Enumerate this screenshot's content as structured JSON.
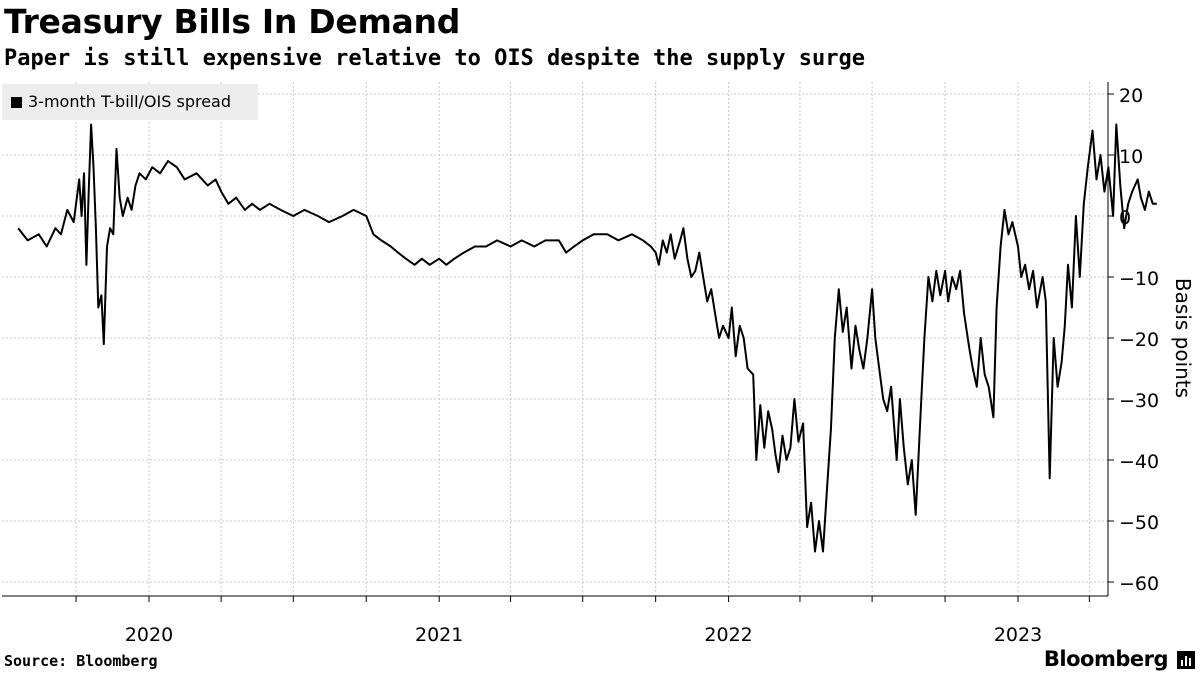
{
  "chart_data": {
    "type": "line",
    "title": "Treasury Bills In Demand",
    "subtitle": "Paper is still expensive relative to OIS despite the supply surge",
    "ylabel": "Basis points",
    "xlabel": "",
    "ylim": [
      -60,
      20
    ],
    "yticks": [
      20,
      10,
      0,
      -10,
      -20,
      -30,
      -40,
      -50,
      -60
    ],
    "xlim": [
      "2019-07-20",
      "2023-06-25"
    ],
    "xtick_labels": [
      "2020",
      "2021",
      "2022",
      "2023"
    ],
    "grid": true,
    "legend": "top-left",
    "series": [
      {
        "name": "3-month T-bill/OIS spread",
        "color": "#000000",
        "points": [
          [
            "2019-07-20",
            -2
          ],
          [
            "2019-08-01",
            -4
          ],
          [
            "2019-08-15",
            -3
          ],
          [
            "2019-08-25",
            -5
          ],
          [
            "2019-09-05",
            -2
          ],
          [
            "2019-09-12",
            -3
          ],
          [
            "2019-09-20",
            1
          ],
          [
            "2019-09-28",
            -1
          ],
          [
            "2019-10-05",
            6
          ],
          [
            "2019-10-08",
            0
          ],
          [
            "2019-10-11",
            7
          ],
          [
            "2019-10-14",
            -8
          ],
          [
            "2019-10-17",
            4
          ],
          [
            "2019-10-20",
            15
          ],
          [
            "2019-10-23",
            8
          ],
          [
            "2019-10-26",
            -2
          ],
          [
            "2019-10-29",
            -15
          ],
          [
            "2019-11-02",
            -13
          ],
          [
            "2019-11-05",
            -21
          ],
          [
            "2019-11-09",
            -5
          ],
          [
            "2019-11-13",
            -2
          ],
          [
            "2019-11-17",
            -3
          ],
          [
            "2019-11-21",
            11
          ],
          [
            "2019-11-25",
            3
          ],
          [
            "2019-11-29",
            0
          ],
          [
            "2019-12-05",
            3
          ],
          [
            "2019-12-10",
            1
          ],
          [
            "2019-12-15",
            5
          ],
          [
            "2019-12-20",
            7
          ],
          [
            "2019-12-28",
            6
          ],
          [
            "2020-01-05",
            8
          ],
          [
            "2020-01-15",
            7
          ],
          [
            "2020-01-25",
            9
          ],
          [
            "2020-02-05",
            8
          ],
          [
            "2020-02-15",
            6
          ],
          [
            "2020-03-01",
            7
          ],
          [
            "2020-03-15",
            5
          ],
          [
            "2020-03-25",
            6
          ],
          [
            "2020-04-01",
            4
          ],
          [
            "2020-04-10",
            2
          ],
          [
            "2020-04-20",
            3
          ],
          [
            "2020-05-01",
            1
          ],
          [
            "2020-05-10",
            2
          ],
          [
            "2020-05-20",
            1
          ],
          [
            "2020-06-01",
            2
          ],
          [
            "2020-06-15",
            1
          ],
          [
            "2020-07-01",
            0
          ],
          [
            "2020-07-15",
            1
          ],
          [
            "2020-08-01",
            0
          ],
          [
            "2020-08-15",
            -1
          ],
          [
            "2020-09-01",
            0
          ],
          [
            "2020-09-15",
            1
          ],
          [
            "2020-10-01",
            0
          ],
          [
            "2020-10-10",
            -3
          ],
          [
            "2020-10-20",
            -4
          ],
          [
            "2020-11-01",
            -5
          ],
          [
            "2020-11-10",
            -6
          ],
          [
            "2020-11-20",
            -7
          ],
          [
            "2020-12-01",
            -8
          ],
          [
            "2020-12-10",
            -7
          ],
          [
            "2020-12-20",
            -8
          ],
          [
            "2021-01-01",
            -7
          ],
          [
            "2021-01-10",
            -8
          ],
          [
            "2021-01-20",
            -7
          ],
          [
            "2021-02-01",
            -6
          ],
          [
            "2021-02-15",
            -5
          ],
          [
            "2021-03-01",
            -5
          ],
          [
            "2021-03-15",
            -4
          ],
          [
            "2021-04-01",
            -5
          ],
          [
            "2021-04-15",
            -4
          ],
          [
            "2021-05-01",
            -5
          ],
          [
            "2021-05-15",
            -4
          ],
          [
            "2021-06-01",
            -4
          ],
          [
            "2021-06-10",
            -6
          ],
          [
            "2021-06-20",
            -5
          ],
          [
            "2021-07-01",
            -4
          ],
          [
            "2021-07-15",
            -3
          ],
          [
            "2021-08-01",
            -3
          ],
          [
            "2021-08-15",
            -4
          ],
          [
            "2021-09-01",
            -3
          ],
          [
            "2021-09-15",
            -4
          ],
          [
            "2021-09-25",
            -5
          ],
          [
            "2021-10-01",
            -6
          ],
          [
            "2021-10-05",
            -8
          ],
          [
            "2021-10-10",
            -4
          ],
          [
            "2021-10-15",
            -6
          ],
          [
            "2021-10-20",
            -3
          ],
          [
            "2021-10-25",
            -7
          ],
          [
            "2021-11-01",
            -4
          ],
          [
            "2021-11-05",
            -2
          ],
          [
            "2021-11-10",
            -7
          ],
          [
            "2021-11-15",
            -10
          ],
          [
            "2021-11-20",
            -9
          ],
          [
            "2021-11-25",
            -6
          ],
          [
            "2021-11-30",
            -10
          ],
          [
            "2021-12-05",
            -14
          ],
          [
            "2021-12-10",
            -12
          ],
          [
            "2021-12-15",
            -16
          ],
          [
            "2021-12-20",
            -20
          ],
          [
            "2021-12-25",
            -18
          ],
          [
            "2022-01-01",
            -20
          ],
          [
            "2022-01-05",
            -15
          ],
          [
            "2022-01-10",
            -23
          ],
          [
            "2022-01-15",
            -18
          ],
          [
            "2022-01-20",
            -20
          ],
          [
            "2022-01-25",
            -25
          ],
          [
            "2022-02-01",
            -26
          ],
          [
            "2022-02-05",
            -40
          ],
          [
            "2022-02-10",
            -31
          ],
          [
            "2022-02-15",
            -38
          ],
          [
            "2022-02-20",
            -32
          ],
          [
            "2022-02-25",
            -35
          ],
          [
            "2022-03-01",
            -39
          ],
          [
            "2022-03-05",
            -42
          ],
          [
            "2022-03-10",
            -36
          ],
          [
            "2022-03-15",
            -40
          ],
          [
            "2022-03-20",
            -38
          ],
          [
            "2022-03-25",
            -30
          ],
          [
            "2022-03-30",
            -37
          ],
          [
            "2022-04-05",
            -34
          ],
          [
            "2022-04-10",
            -51
          ],
          [
            "2022-04-15",
            -47
          ],
          [
            "2022-04-20",
            -55
          ],
          [
            "2022-04-25",
            -50
          ],
          [
            "2022-04-30",
            -55
          ],
          [
            "2022-05-05",
            -45
          ],
          [
            "2022-05-10",
            -35
          ],
          [
            "2022-05-15",
            -20
          ],
          [
            "2022-05-20",
            -12
          ],
          [
            "2022-05-25",
            -19
          ],
          [
            "2022-05-30",
            -15
          ],
          [
            "2022-06-05",
            -25
          ],
          [
            "2022-06-10",
            -18
          ],
          [
            "2022-06-15",
            -22
          ],
          [
            "2022-06-20",
            -25
          ],
          [
            "2022-06-25",
            -20
          ],
          [
            "2022-07-01",
            -12
          ],
          [
            "2022-07-05",
            -20
          ],
          [
            "2022-07-10",
            -25
          ],
          [
            "2022-07-15",
            -30
          ],
          [
            "2022-07-20",
            -32
          ],
          [
            "2022-07-25",
            -28
          ],
          [
            "2022-08-01",
            -40
          ],
          [
            "2022-08-05",
            -30
          ],
          [
            "2022-08-10",
            -38
          ],
          [
            "2022-08-15",
            -44
          ],
          [
            "2022-08-20",
            -40
          ],
          [
            "2022-08-25",
            -49
          ],
          [
            "2022-09-01",
            -30
          ],
          [
            "2022-09-05",
            -20
          ],
          [
            "2022-09-10",
            -10
          ],
          [
            "2022-09-15",
            -14
          ],
          [
            "2022-09-20",
            -9
          ],
          [
            "2022-09-25",
            -13
          ],
          [
            "2022-10-01",
            -9
          ],
          [
            "2022-10-05",
            -14
          ],
          [
            "2022-10-10",
            -10
          ],
          [
            "2022-10-15",
            -12
          ],
          [
            "2022-10-20",
            -9
          ],
          [
            "2022-10-25",
            -16
          ],
          [
            "2022-11-01",
            -22
          ],
          [
            "2022-11-05",
            -25
          ],
          [
            "2022-11-10",
            -28
          ],
          [
            "2022-11-15",
            -20
          ],
          [
            "2022-11-20",
            -26
          ],
          [
            "2022-11-25",
            -28
          ],
          [
            "2022-12-01",
            -33
          ],
          [
            "2022-12-05",
            -15
          ],
          [
            "2022-12-10",
            -5
          ],
          [
            "2022-12-15",
            1
          ],
          [
            "2022-12-20",
            -3
          ],
          [
            "2022-12-25",
            -1
          ],
          [
            "2023-01-01",
            -5
          ],
          [
            "2023-01-05",
            -10
          ],
          [
            "2023-01-10",
            -8
          ],
          [
            "2023-01-15",
            -12
          ],
          [
            "2023-01-20",
            -9
          ],
          [
            "2023-01-25",
            -15
          ],
          [
            "2023-02-01",
            -10
          ],
          [
            "2023-02-05",
            -14
          ],
          [
            "2023-02-10",
            -43
          ],
          [
            "2023-02-15",
            -20
          ],
          [
            "2023-02-20",
            -28
          ],
          [
            "2023-02-25",
            -24
          ],
          [
            "2023-03-01",
            -18
          ],
          [
            "2023-03-05",
            -8
          ],
          [
            "2023-03-10",
            -15
          ],
          [
            "2023-03-15",
            0
          ],
          [
            "2023-03-20",
            -10
          ],
          [
            "2023-03-25",
            2
          ],
          [
            "2023-03-30",
            8
          ],
          [
            "2023-04-05",
            14
          ],
          [
            "2023-04-10",
            6
          ],
          [
            "2023-04-15",
            10
          ],
          [
            "2023-04-20",
            4
          ],
          [
            "2023-04-25",
            8
          ],
          [
            "2023-05-01",
            0
          ],
          [
            "2023-05-05",
            15
          ],
          [
            "2023-05-10",
            5
          ],
          [
            "2023-05-15",
            -2
          ],
          [
            "2023-05-20",
            2
          ],
          [
            "2023-05-25",
            4
          ],
          [
            "2023-06-01",
            6
          ],
          [
            "2023-06-05",
            3
          ],
          [
            "2023-06-10",
            1
          ],
          [
            "2023-06-15",
            4
          ],
          [
            "2023-06-20",
            2
          ],
          [
            "2023-06-25",
            2
          ]
        ]
      }
    ]
  },
  "footer": {
    "source": "Source: Bloomberg",
    "brand": "Bloomberg"
  }
}
